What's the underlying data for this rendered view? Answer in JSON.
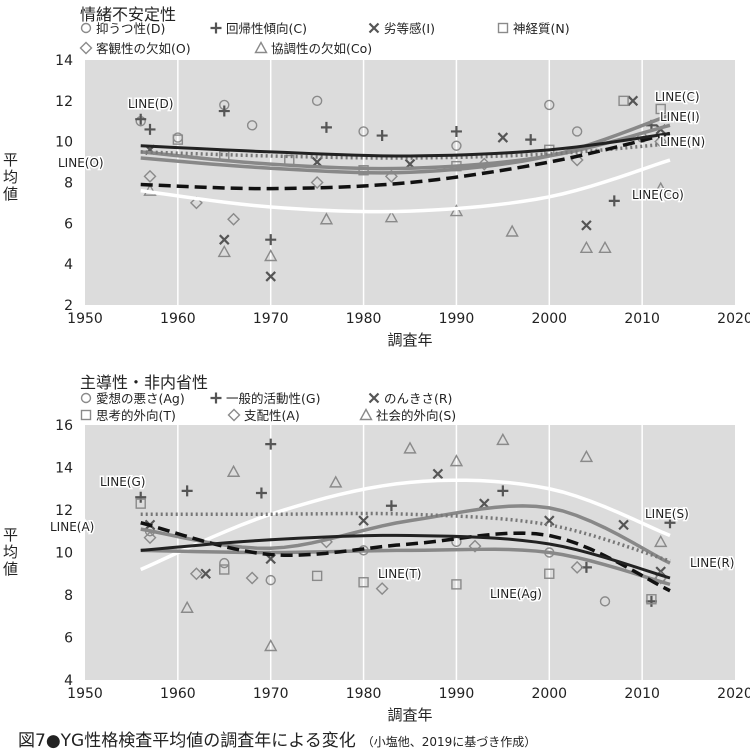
{
  "caption": "図7●YG性格検査平均値の調査年による変化",
  "caption_source": "（小塩他、2019に基づき作成）",
  "chart_data": [
    {
      "type": "scatter",
      "title": "情緒不安定性",
      "xlabel": "調査年",
      "ylabel": "平均値",
      "xlim": [
        1950,
        2020
      ],
      "ylim": [
        2,
        14
      ],
      "xticks": [
        "1950",
        "1960",
        "1970",
        "1980",
        "1990",
        "2000",
        "2010",
        "2020"
      ],
      "yticks": [
        "2",
        "4",
        "6",
        "8",
        "10",
        "12",
        "14"
      ],
      "grid": "vertical",
      "legend_position": "top",
      "series": [
        {
          "name": "抑うつ性(D)",
          "marker": "circle",
          "line_label": "LINE(D)",
          "line_style": "dark-solid",
          "points": [
            [
              1956,
              11
            ],
            [
              1960,
              10.2
            ],
            [
              1965,
              11.8
            ],
            [
              1968,
              10.8
            ],
            [
              1975,
              12
            ],
            [
              1980,
              10.5
            ],
            [
              1990,
              9.8
            ],
            [
              2000,
              11.8
            ],
            [
              2003,
              10.5
            ],
            [
              2010,
              10.2
            ]
          ],
          "trend": [
            [
              1956,
              9.8
            ],
            [
              1970,
              9.5
            ],
            [
              1985,
              9.3
            ],
            [
              2000,
              9.6
            ],
            [
              2013,
              10.4
            ]
          ]
        },
        {
          "name": "回帰性傾向(C)",
          "marker": "plus",
          "line_label": "LINE(C)",
          "line_style": "dotted",
          "points": [
            [
              1956,
              11.1
            ],
            [
              1957,
              10.6
            ],
            [
              1965,
              11.5
            ],
            [
              1970,
              5.2
            ],
            [
              1976,
              10.7
            ],
            [
              1982,
              10.3
            ],
            [
              1990,
              10.5
            ],
            [
              1998,
              10.1
            ],
            [
              2007,
              7.1
            ],
            [
              2011,
              10.8
            ]
          ],
          "trend": [
            [
              1956,
              9.5
            ],
            [
              1970,
              9.3
            ],
            [
              1985,
              9.2
            ],
            [
              2000,
              9.4
            ],
            [
              2013,
              9.9
            ]
          ]
        },
        {
          "name": "劣等感(I)",
          "marker": "x",
          "line_label": "LINE(I)",
          "line_style": "gray-solid",
          "points": [
            [
              1957,
              9.6
            ],
            [
              1965,
              5.2
            ],
            [
              1970,
              3.4
            ],
            [
              1975,
              9.0
            ],
            [
              1985,
              8.9
            ],
            [
              1995,
              10.2
            ],
            [
              2004,
              5.9
            ],
            [
              2009,
              12
            ],
            [
              2012,
              10.6
            ]
          ],
          "trend": [
            [
              1956,
              9.2
            ],
            [
              1970,
              8.7
            ],
            [
              1985,
              8.5
            ],
            [
              2000,
              9.3
            ],
            [
              2013,
              11.3
            ]
          ]
        },
        {
          "name": "神経質(N)",
          "marker": "square",
          "line_label": "LINE(N)",
          "line_style": "gray-solid",
          "points": [
            [
              1960,
              10.1
            ],
            [
              1965,
              9.3
            ],
            [
              1972,
              9.1
            ],
            [
              1980,
              8.6
            ],
            [
              1990,
              8.8
            ],
            [
              2000,
              9.6
            ],
            [
              2008,
              12
            ],
            [
              2012,
              11.6
            ]
          ],
          "trend": [
            [
              1956,
              9.5
            ],
            [
              1970,
              8.9
            ],
            [
              1985,
              8.7
            ],
            [
              2000,
              9.3
            ],
            [
              2013,
              10.8
            ]
          ]
        },
        {
          "name": "客観性の欠如(O)",
          "marker": "diamond",
          "line_label": "LINE(O)",
          "line_style": "dashed",
          "points": [
            [
              1957,
              8.3
            ],
            [
              1962,
              7.0
            ],
            [
              1966,
              6.2
            ],
            [
              1975,
              8.0
            ],
            [
              1983,
              8.3
            ],
            [
              1993,
              8.9
            ],
            [
              2003,
              9.1
            ],
            [
              2012,
              10.0
            ]
          ],
          "trend": [
            [
              1956,
              7.9
            ],
            [
              1970,
              7.7
            ],
            [
              1985,
              8.0
            ],
            [
              2000,
              9.0
            ],
            [
              2013,
              10.4
            ]
          ]
        },
        {
          "name": "協調性の欠如(Co)",
          "marker": "triangle",
          "line_label": "LINE(Co)",
          "line_style": "white-solid",
          "points": [
            [
              1957,
              7.6
            ],
            [
              1965,
              4.6
            ],
            [
              1970,
              4.4
            ],
            [
              1976,
              6.2
            ],
            [
              1983,
              6.3
            ],
            [
              1990,
              6.6
            ],
            [
              1996,
              5.6
            ],
            [
              2004,
              4.8
            ],
            [
              2006,
              4.8
            ],
            [
              2012,
              7.7
            ]
          ],
          "trend": [
            [
              1956,
              7.6
            ],
            [
              1970,
              6.8
            ],
            [
              1985,
              6.6
            ],
            [
              2000,
              7.3
            ],
            [
              2013,
              9.1
            ]
          ]
        }
      ]
    },
    {
      "type": "scatter",
      "title": "主導性・非内省性",
      "xlabel": "調査年",
      "ylabel": "平均値",
      "xlim": [
        1950,
        2020
      ],
      "ylim": [
        4,
        16
      ],
      "xticks": [
        "1950",
        "1960",
        "1970",
        "1980",
        "1990",
        "2000",
        "2010",
        "2020"
      ],
      "yticks": [
        "4",
        "6",
        "8",
        "10",
        "12",
        "14",
        "16"
      ],
      "grid": "vertical",
      "legend_position": "top",
      "series": [
        {
          "name": "愛想の悪さ(Ag)",
          "marker": "circle",
          "line_label": "LINE(Ag)",
          "line_style": "dark-solid",
          "points": [
            [
              1957,
              11.0
            ],
            [
              1965,
              9.5
            ],
            [
              1970,
              8.7
            ],
            [
              1980,
              10.1
            ],
            [
              1990,
              10.5
            ],
            [
              2000,
              10.0
            ],
            [
              2006,
              7.7
            ],
            [
              2012,
              8.8
            ]
          ],
          "trend": [
            [
              1956,
              10.1
            ],
            [
              1970,
              10.6
            ],
            [
              1985,
              10.8
            ],
            [
              2000,
              10.4
            ],
            [
              2013,
              8.8
            ]
          ]
        },
        {
          "name": "一般的活動性(G)",
          "marker": "plus",
          "line_label": "LINE(G)",
          "line_style": "dotted",
          "points": [
            [
              1956,
              12.6
            ],
            [
              1961,
              12.9
            ],
            [
              1970,
              15.1
            ],
            [
              1969,
              12.8
            ],
            [
              1983,
              12.2
            ],
            [
              1995,
              12.9
            ],
            [
              2004,
              9.3
            ],
            [
              2011,
              7.7
            ],
            [
              2013,
              11.4
            ]
          ],
          "trend": [
            [
              1956,
              11.8
            ],
            [
              1970,
              11.8
            ],
            [
              1985,
              11.8
            ],
            [
              2000,
              11.3
            ],
            [
              2013,
              9.6
            ]
          ]
        },
        {
          "name": "のんきさ(R)",
          "marker": "x",
          "line_label": "LINE(R)",
          "line_style": "gray-solid",
          "points": [
            [
              1957,
              11.3
            ],
            [
              1963,
              9.0
            ],
            [
              1970,
              9.7
            ],
            [
              1980,
              11.5
            ],
            [
              1988,
              13.7
            ],
            [
              1993,
              12.3
            ],
            [
              2000,
              11.5
            ],
            [
              2008,
              11.3
            ],
            [
              2012,
              9.1
            ]
          ],
          "trend": [
            [
              1956,
              11.1
            ],
            [
              1970,
              10.2
            ],
            [
              1985,
              11.5
            ],
            [
              2000,
              12.1
            ],
            [
              2013,
              9.5
            ]
          ]
        },
        {
          "name": "思考的外向(T)",
          "marker": "square",
          "line_label": "LINE(T)",
          "line_style": "gray-solid",
          "points": [
            [
              1956,
              12.3
            ],
            [
              1965,
              9.2
            ],
            [
              1975,
              8.9
            ],
            [
              1980,
              8.6
            ],
            [
              1990,
              8.5
            ],
            [
              2000,
              9.0
            ],
            [
              2011,
              7.8
            ]
          ],
          "trend": [
            [
              1956,
              10.1
            ],
            [
              1970,
              10.0
            ],
            [
              1985,
              10.1
            ],
            [
              2000,
              10.0
            ],
            [
              2013,
              8.5
            ]
          ]
        },
        {
          "name": "支配性(A)",
          "marker": "diamond",
          "line_label": "LINE(A)",
          "line_style": "dashed",
          "points": [
            [
              1957,
              10.7
            ],
            [
              1962,
              9.0
            ],
            [
              1968,
              8.8
            ],
            [
              1976,
              10.5
            ],
            [
              1982,
              8.3
            ],
            [
              1992,
              10.3
            ],
            [
              2003,
              9.3
            ],
            [
              2012,
              8.8
            ]
          ],
          "trend": [
            [
              1956,
              11.4
            ],
            [
              1970,
              9.9
            ],
            [
              1985,
              10.4
            ],
            [
              2000,
              10.8
            ],
            [
              2013,
              8.2
            ]
          ]
        },
        {
          "name": "社会的外向(S)",
          "marker": "triangle",
          "line_label": "LINE(S)",
          "line_style": "white-solid",
          "points": [
            [
              1961,
              7.4
            ],
            [
              1966,
              13.8
            ],
            [
              1970,
              5.6
            ],
            [
              1977,
              13.3
            ],
            [
              1985,
              14.9
            ],
            [
              1990,
              14.3
            ],
            [
              1995,
              15.3
            ],
            [
              2004,
              14.5
            ],
            [
              2012,
              10.5
            ]
          ],
          "trend": [
            [
              1956,
              9.2
            ],
            [
              1970,
              11.8
            ],
            [
              1985,
              13.3
            ],
            [
              2000,
              13.0
            ],
            [
              2013,
              10.8
            ]
          ]
        }
      ]
    }
  ]
}
